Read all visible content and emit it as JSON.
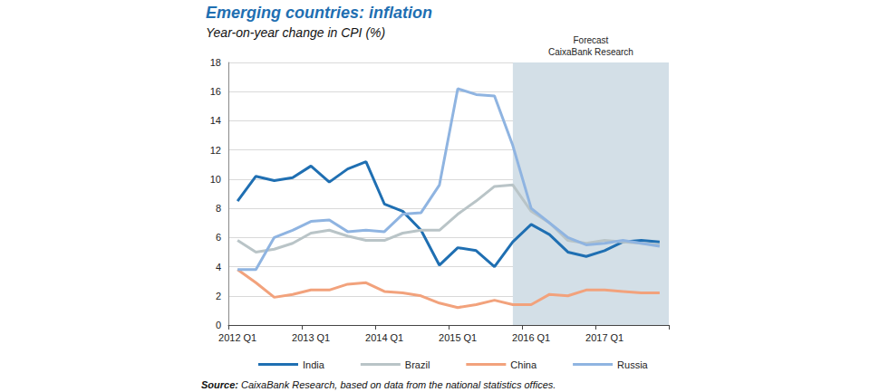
{
  "chart_data": {
    "type": "line",
    "title": "Emerging countries: inflation",
    "subtitle": "Year-on-year change in CPI (%)",
    "categories": [
      "2012 Q1",
      null,
      null,
      null,
      "2013 Q1",
      null,
      null,
      null,
      "2014 Q1",
      null,
      null,
      null,
      "2015 Q1",
      null,
      null,
      null,
      "2016 Q1",
      null,
      null,
      null,
      "2017 Q1",
      null,
      null,
      null
    ],
    "series": [
      {
        "name": "India",
        "color": "#1f6fb2",
        "values": [
          8.5,
          10.2,
          9.9,
          10.1,
          10.9,
          9.8,
          10.7,
          11.2,
          8.3,
          7.8,
          6.5,
          4.1,
          5.3,
          5.1,
          4.0,
          5.7,
          6.9,
          6.2,
          5.0,
          4.7,
          5.1,
          5.7,
          5.8,
          5.7
        ]
      },
      {
        "name": "Brazil",
        "color": "#b9c4c7",
        "values": [
          5.8,
          5.0,
          5.2,
          5.6,
          6.3,
          6.5,
          6.1,
          5.8,
          5.8,
          6.3,
          6.5,
          6.5,
          7.6,
          8.5,
          9.5,
          9.6,
          7.8,
          7.0,
          5.8,
          5.6,
          5.8,
          5.7,
          5.6,
          5.5
        ]
      },
      {
        "name": "China",
        "color": "#f2a27c",
        "values": [
          3.8,
          2.9,
          1.9,
          2.1,
          2.4,
          2.4,
          2.8,
          2.9,
          2.3,
          2.2,
          2.0,
          1.5,
          1.2,
          1.4,
          1.7,
          1.4,
          1.4,
          2.1,
          2.0,
          2.4,
          2.4,
          2.3,
          2.2,
          2.2
        ]
      },
      {
        "name": "Russia",
        "color": "#8fb4e1",
        "values": [
          3.8,
          3.8,
          6.0,
          6.5,
          7.1,
          7.2,
          6.4,
          6.5,
          6.4,
          7.6,
          7.7,
          9.6,
          16.2,
          15.8,
          15.7,
          12.3,
          8.0,
          7.0,
          6.0,
          5.5,
          5.6,
          5.8,
          5.6,
          5.4
        ]
      }
    ],
    "ylim": [
      0,
      18
    ],
    "yticks": [
      0,
      2,
      4,
      6,
      8,
      10,
      12,
      14,
      16,
      18
    ],
    "grid": true,
    "legend": "bottom",
    "forecast": {
      "label": "Forecast\nCaixaBank Research",
      "start_index": 15
    },
    "source": "Source: CaixaBank Research, based on data from the national statistics offices."
  }
}
